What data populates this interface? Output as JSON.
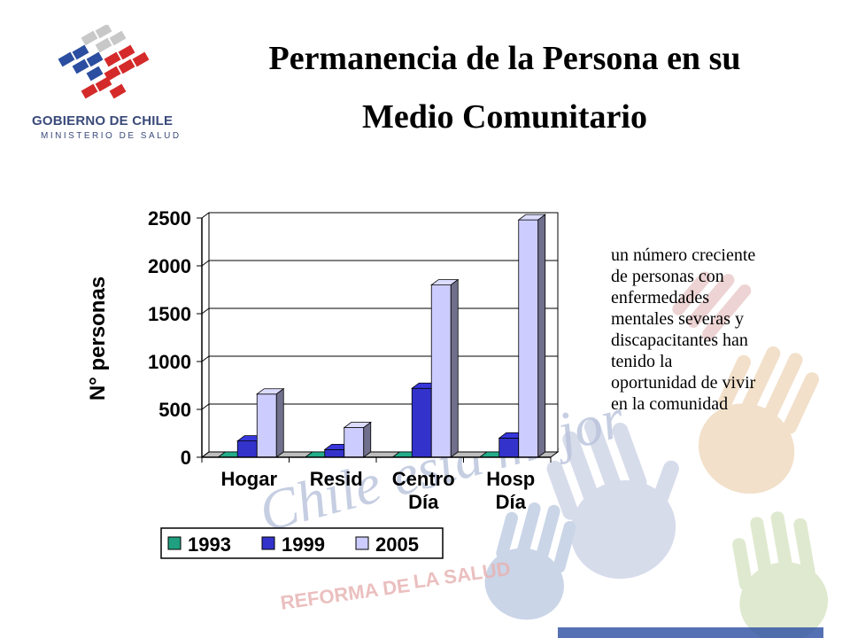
{
  "logo": {
    "line1": "GOBIERNO DE CHILE",
    "line2": "MINISTERIO DE SALUD"
  },
  "title": {
    "line1": "Permanencia  de la Persona en su",
    "line2": "Medio Comunitario"
  },
  "side_text": [
    "un número creciente",
    "de personas con",
    "enfermedades",
    "mentales severas y",
    "discapacitantes han",
    "tenido la",
    "oportunidad de vivir",
    "en la comunidad"
  ],
  "watermark": {
    "script": "Chile está mejor",
    "reforma": "REFORMA DE",
    "salud": "LA SALUD"
  },
  "chart_data": {
    "type": "bar",
    "categories": [
      [
        "Hogar"
      ],
      [
        "Resid"
      ],
      [
        "Centro",
        "Día"
      ],
      [
        "Hosp",
        "Día"
      ]
    ],
    "series": [
      {
        "name": "1993",
        "values": [
          0,
          0,
          0,
          0
        ],
        "color": "#20a080"
      },
      {
        "name": "1999",
        "values": [
          170,
          80,
          720,
          200
        ],
        "color": "#3333cc"
      },
      {
        "name": "2005",
        "values": [
          660,
          310,
          1800,
          2480
        ],
        "color": "#ccccff"
      }
    ],
    "ylabel": "N° personas",
    "ylim": [
      0,
      2500
    ],
    "yticks": [
      0,
      500,
      1000,
      1500,
      2000,
      2500
    ],
    "grid": true,
    "legend_position": "bottom"
  },
  "colors": {
    "logo_blue": "#2b4ea0",
    "logo_red": "#d42a2a",
    "logo_grey": "#c8c8c8",
    "text_navy": "#3a4a7a"
  }
}
